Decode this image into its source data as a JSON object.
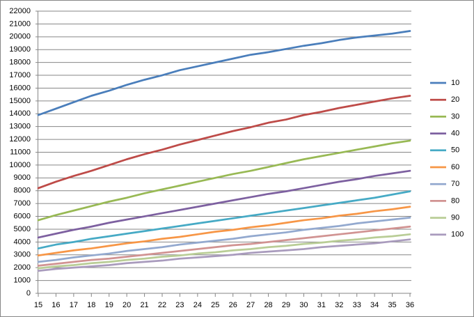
{
  "chart_data": {
    "type": "line",
    "categories": [
      15,
      16,
      17,
      18,
      19,
      20,
      21,
      22,
      23,
      24,
      25,
      26,
      27,
      28,
      29,
      30,
      31,
      32,
      33,
      34,
      35,
      36
    ],
    "ylim": [
      0,
      22000
    ],
    "yticks": [
      0,
      1000,
      2000,
      3000,
      4000,
      5000,
      6000,
      7000,
      8000,
      9000,
      10000,
      11000,
      12000,
      13000,
      14000,
      15000,
      16000,
      17000,
      18000,
      19000,
      20000,
      21000,
      22000
    ],
    "grid": true,
    "legend": "right",
    "series": [
      {
        "name": "10",
        "color": "#4a7ebb",
        "values": [
          13900,
          14400,
          14900,
          15400,
          15800,
          16250,
          16650,
          17000,
          17400,
          17700,
          18000,
          18300,
          18600,
          18800,
          19050,
          19300,
          19500,
          19750,
          19950,
          20100,
          20250,
          20450
        ]
      },
      {
        "name": "20",
        "color": "#be4b48",
        "values": [
          8200,
          8700,
          9150,
          9550,
          10000,
          10450,
          10850,
          11200,
          11600,
          11950,
          12300,
          12650,
          12950,
          13300,
          13550,
          13900,
          14150,
          14450,
          14700,
          14950,
          15200,
          15400
        ]
      },
      {
        "name": "30",
        "color": "#98b954",
        "values": [
          5700,
          6100,
          6450,
          6800,
          7150,
          7450,
          7800,
          8100,
          8400,
          8700,
          9000,
          9300,
          9550,
          9850,
          10150,
          10450,
          10700,
          10950,
          11200,
          11450,
          11700,
          11900
        ]
      },
      {
        "name": "40",
        "color": "#7d60a0",
        "values": [
          4350,
          4650,
          4950,
          5200,
          5500,
          5750,
          6000,
          6250,
          6500,
          6750,
          7000,
          7250,
          7500,
          7750,
          7950,
          8200,
          8450,
          8700,
          8900,
          9150,
          9350,
          9550
        ]
      },
      {
        "name": "50",
        "color": "#46aac5",
        "values": [
          3500,
          3800,
          4000,
          4250,
          4450,
          4650,
          4850,
          5050,
          5250,
          5450,
          5650,
          5850,
          6050,
          6250,
          6450,
          6650,
          6850,
          7050,
          7250,
          7450,
          7700,
          7950
        ]
      },
      {
        "name": "60",
        "color": "#f79646",
        "values": [
          2950,
          3150,
          3350,
          3500,
          3700,
          3900,
          4050,
          4250,
          4400,
          4600,
          4800,
          4950,
          5150,
          5300,
          5500,
          5700,
          5850,
          6050,
          6200,
          6400,
          6550,
          6750
        ]
      },
      {
        "name": "70",
        "color": "#93a9cf",
        "values": [
          2450,
          2600,
          2800,
          2950,
          3100,
          3300,
          3450,
          3600,
          3800,
          3950,
          4100,
          4250,
          4450,
          4600,
          4750,
          4950,
          5100,
          5250,
          5450,
          5600,
          5750,
          5900
        ]
      },
      {
        "name": "80",
        "color": "#d19392",
        "values": [
          2150,
          2300,
          2450,
          2600,
          2700,
          2850,
          3000,
          3150,
          3300,
          3450,
          3600,
          3750,
          3850,
          4000,
          4150,
          4300,
          4450,
          4600,
          4750,
          4900,
          5050,
          5200
        ]
      },
      {
        "name": "90",
        "color": "#b9cd96",
        "values": [
          1950,
          2100,
          2200,
          2350,
          2450,
          2600,
          2700,
          2850,
          2950,
          3100,
          3200,
          3350,
          3450,
          3600,
          3700,
          3850,
          3950,
          4100,
          4200,
          4350,
          4450,
          4600
        ]
      },
      {
        "name": "100",
        "color": "#a99bbd",
        "values": [
          1750,
          1900,
          2000,
          2100,
          2200,
          2350,
          2450,
          2550,
          2700,
          2800,
          2900,
          3000,
          3150,
          3250,
          3350,
          3450,
          3600,
          3700,
          3800,
          3900,
          4050,
          4200
        ]
      }
    ]
  }
}
